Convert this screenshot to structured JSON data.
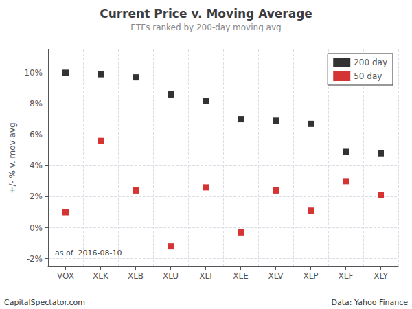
{
  "chart_data": {
    "type": "scatter",
    "title": "Current Price v. Moving Average",
    "subtitle": "ETFs ranked by 200-day moving avg",
    "ylabel": "+/- % v. mov avg",
    "annotation": "as of  2016-08-10",
    "footer_left": "CapitalSpectator.com",
    "footer_right": "Data: Yahoo Finance",
    "categories": [
      "VOX",
      "XLK",
      "XLB",
      "XLU",
      "XLI",
      "XLE",
      "XLV",
      "XLP",
      "XLF",
      "XLY"
    ],
    "series": [
      {
        "name": "200 day",
        "color": "#000000",
        "marker": "square",
        "values": [
          10.0,
          9.9,
          9.7,
          8.6,
          8.2,
          7.0,
          6.9,
          6.7,
          4.9,
          4.8
        ]
      },
      {
        "name": "50 day",
        "color": "#cc0000",
        "marker": "square",
        "values": [
          1.0,
          5.6,
          2.4,
          -1.2,
          2.6,
          -0.3,
          2.4,
          1.1,
          3.0,
          2.1
        ]
      }
    ],
    "ylim": [
      -2.5,
      11.5
    ],
    "yticks": [
      {
        "value": -2,
        "label": "-2%"
      },
      {
        "value": 0,
        "label": "0%"
      },
      {
        "value": 2,
        "label": "2%"
      },
      {
        "value": 4,
        "label": "4%"
      },
      {
        "value": 6,
        "label": "6%"
      },
      {
        "value": 8,
        "label": "8%"
      },
      {
        "value": 10,
        "label": "10%"
      }
    ],
    "grid": true,
    "legend": "upper right"
  }
}
